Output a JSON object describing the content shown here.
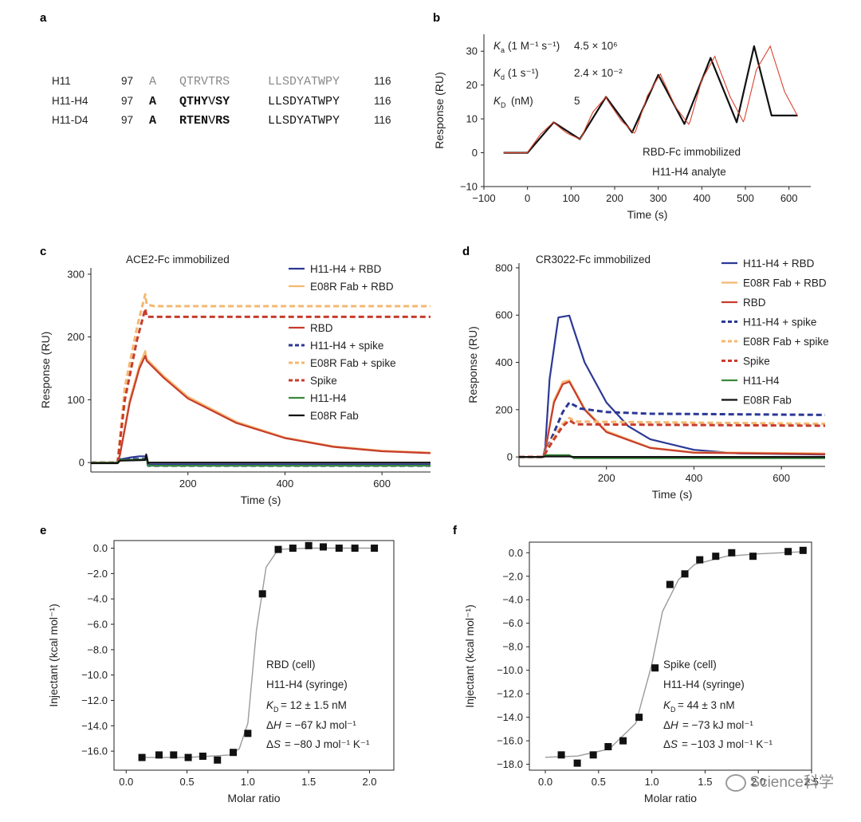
{
  "figure": {
    "watermark": "Science科学",
    "colors": {
      "navy": "#2b3896",
      "light_orange": "#f3b870",
      "orange": "#e58a47",
      "red": "#c73c2c",
      "green": "#3a8a3a",
      "black": "#111111",
      "gray_text": "#8a8a8a",
      "fit_line": "#9a9a9a"
    },
    "panels": {
      "a": {
        "letter": "a",
        "rows": [
          {
            "name": "H11",
            "start": "97",
            "res": "A",
            "mid": [
              "Q",
              "T",
              "R",
              "V",
              "T",
              "R",
              "S"
            ],
            "mid_bold": [
              false,
              false,
              false,
              false,
              false,
              false,
              false
            ],
            "tail": "LLSDYATWPY",
            "end": "116",
            "gray": true,
            "res_bold": false
          },
          {
            "name": "H11-H4",
            "start": "97",
            "res": "A",
            "mid": [
              "Q",
              "T",
              "H",
              "Y",
              "V",
              "S",
              "Y"
            ],
            "mid_bold": [
              true,
              true,
              true,
              true,
              false,
              true,
              true
            ],
            "tail": "LLSDYATWPY",
            "end": "116",
            "gray": false,
            "res_bold": true
          },
          {
            "name": "H11-D4",
            "start": "97",
            "res": "A",
            "mid": [
              "R",
              "T",
              "E",
              "N",
              "V",
              "R",
              "S"
            ],
            "mid_bold": [
              true,
              true,
              true,
              true,
              false,
              true,
              true
            ],
            "tail": "LLSDYATWPY",
            "end": "116",
            "gray": false,
            "res_bold": true
          }
        ]
      },
      "b": {
        "letter": "b",
        "ka_label": "(1 M⁻¹ s⁻¹)",
        "ka_value": "4.5 × 10⁶",
        "kd_label": "(1 s⁻¹)",
        "kd_value": "2.4 × 10⁻²",
        "KD_label": "(nM)",
        "KD_value": "5",
        "note_1": "RBD-Fc immobilized",
        "note_2": "H11-H4 analyte"
      },
      "c": {
        "letter": "c",
        "title": "ACE2-Fc immobilized"
      },
      "d": {
        "letter": "d",
        "title": "CR3022-Fc immobilized"
      },
      "e": {
        "letter": "e",
        "ann": [
          "RBD (cell)",
          "H11-H4 (syringe)",
          "= 12 ± 1.5 nM",
          "= −67 kJ mol⁻¹",
          "= −80 J mol⁻¹ K⁻¹"
        ]
      },
      "f": {
        "letter": "f",
        "ann": [
          "Spike (cell)",
          "H11-H4 (syringe)",
          "=  44 ± 3  nM",
          "= −73 kJ mol⁻¹",
          "= −103 J mol⁻¹ K⁻¹"
        ]
      }
    }
  },
  "chart_data": [
    {
      "id": "b",
      "type": "line",
      "xlabel": "Time (s)",
      "ylabel": "Response (RU)",
      "xlim": [
        -100,
        650
      ],
      "ylim": [
        -10,
        35
      ],
      "xticks": [
        -100,
        0,
        100,
        200,
        300,
        400,
        500,
        600
      ],
      "yticks": [
        -10,
        0,
        10,
        20,
        30
      ],
      "series": [
        {
          "name": "",
          "color": "#111111",
          "style": "solid",
          "x": [
            -55,
            0,
            60,
            120,
            180,
            240,
            300,
            360,
            420,
            480,
            520,
            560,
            620
          ],
          "y": [
            0,
            0,
            9,
            4,
            16.5,
            6,
            23,
            8.5,
            28,
            9,
            31.5,
            11,
            11
          ],
          "description": "sensorgram + fit (5 association/dissociation cycles)"
        }
      ],
      "points_x": [
        -55,
        -1,
        0,
        30,
        60,
        63,
        90,
        120,
        123,
        150,
        180,
        183,
        215,
        245,
        248,
        275,
        305,
        308,
        340,
        370,
        373,
        400,
        430,
        433,
        465,
        495,
        498,
        525,
        557,
        560,
        590,
        620
      ],
      "points_y": [
        0,
        0,
        0.1,
        5.5,
        9.1,
        8.6,
        5.8,
        4,
        4.4,
        12,
        16.5,
        15.6,
        9.5,
        5.8,
        6.3,
        16.8,
        23.3,
        22.3,
        13.5,
        8.4,
        9.2,
        21.5,
        28.5,
        27.2,
        16.5,
        9.2,
        10,
        24.5,
        31.5,
        30.2,
        18,
        10.8
      ]
    },
    {
      "id": "c",
      "type": "line",
      "xlabel": "Time (s)",
      "ylabel": "Response (RU)",
      "xlim": [
        0,
        700
      ],
      "ylim": [
        -15,
        310
      ],
      "xticks": [
        200,
        400,
        600
      ],
      "yticks": [
        0,
        100,
        200,
        300
      ],
      "series": [
        {
          "name": "H11-H4 + RBD",
          "color": "#2b3896",
          "style": "solid",
          "x": [
            0,
            55,
            60,
            80,
            100,
            115,
            118,
            200,
            400,
            700
          ],
          "y": [
            0,
            0,
            5,
            8,
            10,
            10,
            -3,
            -3,
            -3,
            -3
          ]
        },
        {
          "name": "E08R Fab + RBD",
          "color": "#f3b870",
          "style": "solid",
          "x": [
            0,
            55,
            60,
            80,
            100,
            112,
            115,
            150,
            200,
            300,
            400,
            500,
            600,
            700
          ],
          "y": [
            0,
            0,
            15,
            100,
            155,
            178,
            165,
            138,
            105,
            65,
            40,
            26,
            19,
            16
          ]
        },
        {
          "name": "RBD",
          "color": "#c73c2c",
          "style": "solid",
          "x": [
            0,
            55,
            60,
            80,
            100,
            112,
            115,
            150,
            200,
            300,
            400,
            500,
            600,
            700
          ],
          "y": [
            0,
            0,
            12,
            95,
            150,
            170,
            162,
            135,
            102,
            63,
            39,
            25,
            18,
            15
          ]
        },
        {
          "name": "H11-H4 + spike",
          "color": "#2b3896",
          "style": "dashed",
          "x": [
            0,
            55,
            60,
            115,
            118,
            700
          ],
          "y": [
            0,
            0,
            5,
            6,
            -5,
            -5
          ]
        },
        {
          "name": "E08R Fab + spike",
          "color": "#f3b870",
          "style": "dashed",
          "x": [
            0,
            55,
            70,
            95,
            112,
            115,
            130,
            700
          ],
          "y": [
            0,
            0,
            120,
            215,
            268,
            252,
            249,
            249
          ]
        },
        {
          "name": "Spike",
          "color": "#c73c2c",
          "style": "dashed",
          "x": [
            0,
            55,
            70,
            95,
            112,
            115,
            130,
            700
          ],
          "y": [
            0,
            0,
            100,
            195,
            245,
            232,
            232,
            232
          ]
        },
        {
          "name": "H11-H4",
          "color": "#3a8a3a",
          "style": "solid",
          "x": [
            0,
            55,
            60,
            115,
            118,
            700
          ],
          "y": [
            0,
            0,
            4,
            5,
            -5,
            -5
          ]
        },
        {
          "name": "E08R Fab",
          "color": "#111111",
          "style": "solid",
          "x": [
            0,
            55,
            60,
            112,
            114,
            118,
            120,
            700
          ],
          "y": [
            -1,
            -1,
            3,
            4,
            13,
            -1,
            0,
            0
          ]
        }
      ]
    },
    {
      "id": "d",
      "type": "line",
      "xlabel": "Time (s)",
      "ylabel": "Response (RU)",
      "xlim": [
        0,
        700
      ],
      "ylim": [
        -40,
        820
      ],
      "xticks": [
        200,
        400,
        600
      ],
      "yticks": [
        0,
        200,
        400,
        600,
        800
      ],
      "series": [
        {
          "name": "H11-H4 + RBD",
          "color": "#2b3896",
          "style": "solid",
          "x": [
            0,
            55,
            60,
            70,
            90,
            115,
            125,
            150,
            200,
            250,
            300,
            400,
            500,
            700
          ],
          "y": [
            0,
            0,
            40,
            330,
            590,
            598,
            540,
            400,
            230,
            130,
            75,
            30,
            15,
            10
          ]
        },
        {
          "name": "E08R Fab + RBD",
          "color": "#f3b870",
          "style": "solid",
          "x": [
            0,
            55,
            60,
            80,
            100,
            115,
            125,
            150,
            200,
            300,
            400,
            700
          ],
          "y": [
            0,
            0,
            30,
            240,
            318,
            325,
            290,
            205,
            110,
            40,
            20,
            15
          ]
        },
        {
          "name": "RBD",
          "color": "#c73c2c",
          "style": "solid",
          "x": [
            0,
            55,
            60,
            80,
            100,
            115,
            125,
            150,
            200,
            300,
            400,
            700
          ],
          "y": [
            0,
            0,
            25,
            230,
            308,
            318,
            285,
            200,
            105,
            38,
            18,
            12
          ]
        },
        {
          "name": "H11-H4 + spike",
          "color": "#2b3896",
          "style": "dashed",
          "x": [
            0,
            55,
            70,
            100,
            115,
            140,
            200,
            300,
            700
          ],
          "y": [
            0,
            0,
            60,
            190,
            230,
            205,
            190,
            183,
            178
          ]
        },
        {
          "name": "E08R Fab + spike",
          "color": "#f3b870",
          "style": "dashed",
          "x": [
            0,
            55,
            75,
            100,
            115,
            130,
            700
          ],
          "y": [
            0,
            0,
            70,
            140,
            165,
            150,
            140
          ]
        },
        {
          "name": "Spike",
          "color": "#c73c2c",
          "style": "dashed",
          "x": [
            0,
            55,
            75,
            100,
            115,
            130,
            700
          ],
          "y": [
            0,
            0,
            60,
            130,
            155,
            138,
            132
          ]
        },
        {
          "name": "H11-H4",
          "color": "#3a8a3a",
          "style": "solid",
          "x": [
            0,
            55,
            60,
            115,
            125,
            700
          ],
          "y": [
            0,
            0,
            8,
            8,
            -5,
            -5
          ]
        },
        {
          "name": "E08R Fab",
          "color": "#111111",
          "style": "solid",
          "x": [
            0,
            55,
            60,
            115,
            125,
            700
          ],
          "y": [
            0,
            0,
            2,
            2,
            0,
            0
          ]
        }
      ]
    },
    {
      "id": "e",
      "type": "scatter",
      "xlabel": "Molar ratio",
      "ylabel": "Injectant (kcal mol⁻¹)",
      "xlim": [
        -0.1,
        2.2
      ],
      "ylim": [
        -17.5,
        0.6
      ],
      "xticks": [
        0.0,
        0.5,
        1.0,
        1.5,
        2.0
      ],
      "yticks": [
        0.0,
        -2.0,
        -4.0,
        -6.0,
        -8.0,
        -10.0,
        -12.0,
        -14.0,
        -16.0
      ],
      "points": {
        "x": [
          0.13,
          0.27,
          0.39,
          0.51,
          0.63,
          0.75,
          0.88,
          1.0,
          1.12,
          1.25,
          1.37,
          1.5,
          1.62,
          1.75,
          1.88,
          2.04
        ],
        "y": [
          -16.5,
          -16.3,
          -16.3,
          -16.5,
          -16.4,
          -16.7,
          -16.1,
          -14.6,
          -3.6,
          -0.1,
          0.0,
          0.2,
          0.1,
          0.0,
          0.0,
          0.0
        ]
      },
      "fit": {
        "x": [
          0.1,
          0.5,
          0.85,
          0.93,
          1.0,
          1.07,
          1.15,
          1.25,
          1.5,
          2.05
        ],
        "y": [
          -16.5,
          -16.5,
          -16.3,
          -15.8,
          -13.8,
          -6.5,
          -1.5,
          -0.1,
          0.0,
          0.0
        ]
      }
    },
    {
      "id": "f",
      "type": "scatter",
      "xlabel": "Molar ratio",
      "ylabel": "Injectant (kcal mol⁻¹)",
      "xlim": [
        -0.15,
        2.5
      ],
      "ylim": [
        -18.5,
        0.9
      ],
      "xticks": [
        0.0,
        0.5,
        1.0,
        1.5,
        2.0,
        2.5
      ],
      "yticks": [
        0.0,
        -2.0,
        -4.0,
        -6.0,
        -8.0,
        -10.0,
        -12.0,
        -14.0,
        -16.0,
        -18.0
      ],
      "points": {
        "x": [
          0.15,
          0.3,
          0.45,
          0.59,
          0.73,
          0.88,
          1.03,
          1.17,
          1.31,
          1.45,
          1.6,
          1.75,
          1.95,
          2.28,
          2.42
        ],
        "y": [
          -17.2,
          -17.9,
          -17.2,
          -16.5,
          -16.0,
          -14.0,
          -9.8,
          -2.7,
          -1.8,
          -0.6,
          -0.3,
          0.0,
          -0.3,
          0.1,
          0.2
        ]
      },
      "fit": {
        "x": [
          0.0,
          0.3,
          0.6,
          0.85,
          1.0,
          1.1,
          1.25,
          1.4,
          1.7,
          2.0,
          2.45
        ],
        "y": [
          -17.4,
          -17.3,
          -16.7,
          -14.5,
          -9.5,
          -5.0,
          -2.3,
          -1.0,
          -0.3,
          -0.1,
          0.1
        ]
      }
    }
  ]
}
